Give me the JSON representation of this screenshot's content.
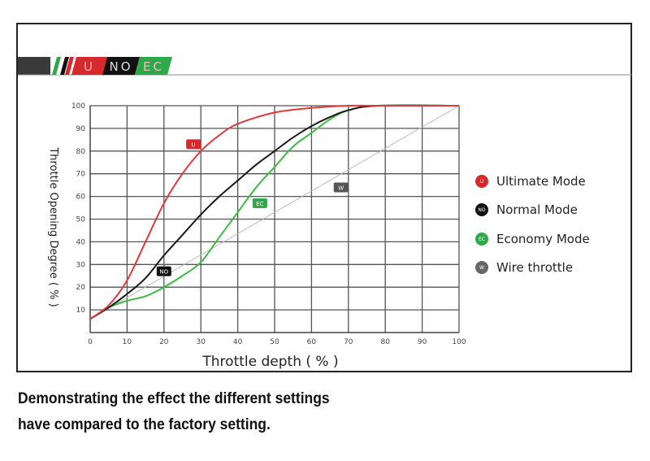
{
  "banner": {
    "labels": [
      "U",
      "NO",
      "EC"
    ],
    "colors": [
      "#d7282c",
      "#111111",
      "#2fa84a"
    ]
  },
  "caption": {
    "line1": "Demonstrating the effect the different settings",
    "line2": "have compared to the factory setting."
  },
  "chart_data": {
    "type": "line",
    "title": "",
    "xlabel": "Throttle depth ( % )",
    "ylabel": "Throttle Opening Degree ( % )",
    "xlim": [
      0,
      100
    ],
    "ylim": [
      0,
      100
    ],
    "xticks": [
      0,
      10,
      20,
      30,
      40,
      50,
      60,
      70,
      80,
      90,
      100
    ],
    "yticks": [
      10,
      20,
      30,
      40,
      50,
      60,
      70,
      80,
      90,
      100
    ],
    "grid": true,
    "legend_position": "right",
    "series": [
      {
        "name": "Ultimate Mode",
        "tag": "U",
        "color": "#e03a3a",
        "tag_at": [
          28,
          83
        ],
        "x": [
          0,
          5,
          10,
          15,
          20,
          25,
          30,
          35,
          40,
          50,
          60,
          70,
          78,
          100
        ],
        "y": [
          6,
          12,
          23,
          40,
          57,
          70,
          80,
          87,
          92,
          97,
          99,
          100,
          100,
          100
        ]
      },
      {
        "name": "Normal Mode",
        "tag": "NO",
        "color": "#1a1a1a",
        "tag_at": [
          20,
          27
        ],
        "x": [
          0,
          5,
          10,
          15,
          20,
          25,
          30,
          35,
          40,
          45,
          50,
          55,
          60,
          65,
          70,
          78,
          100
        ],
        "y": [
          6,
          11,
          17,
          24,
          34,
          43,
          52,
          60,
          67,
          74,
          80,
          86,
          91,
          95,
          98,
          100,
          100
        ]
      },
      {
        "name": "Economy Mode",
        "tag": "EC",
        "color": "#3dbb45",
        "tag_at": [
          46,
          57
        ],
        "x": [
          0,
          5,
          10,
          15,
          20,
          25,
          30,
          35,
          40,
          45,
          50,
          55,
          60,
          65,
          70,
          78,
          100
        ],
        "y": [
          6,
          11,
          14,
          16,
          20,
          25,
          31,
          42,
          53,
          64,
          73,
          82,
          88,
          94,
          98,
          100,
          100
        ]
      },
      {
        "name": "Wire throttle",
        "tag": "W",
        "color": "#bbbbbb",
        "tag_at": [
          68,
          64
        ],
        "x": [
          0,
          100
        ],
        "y": [
          6,
          100
        ]
      }
    ]
  }
}
